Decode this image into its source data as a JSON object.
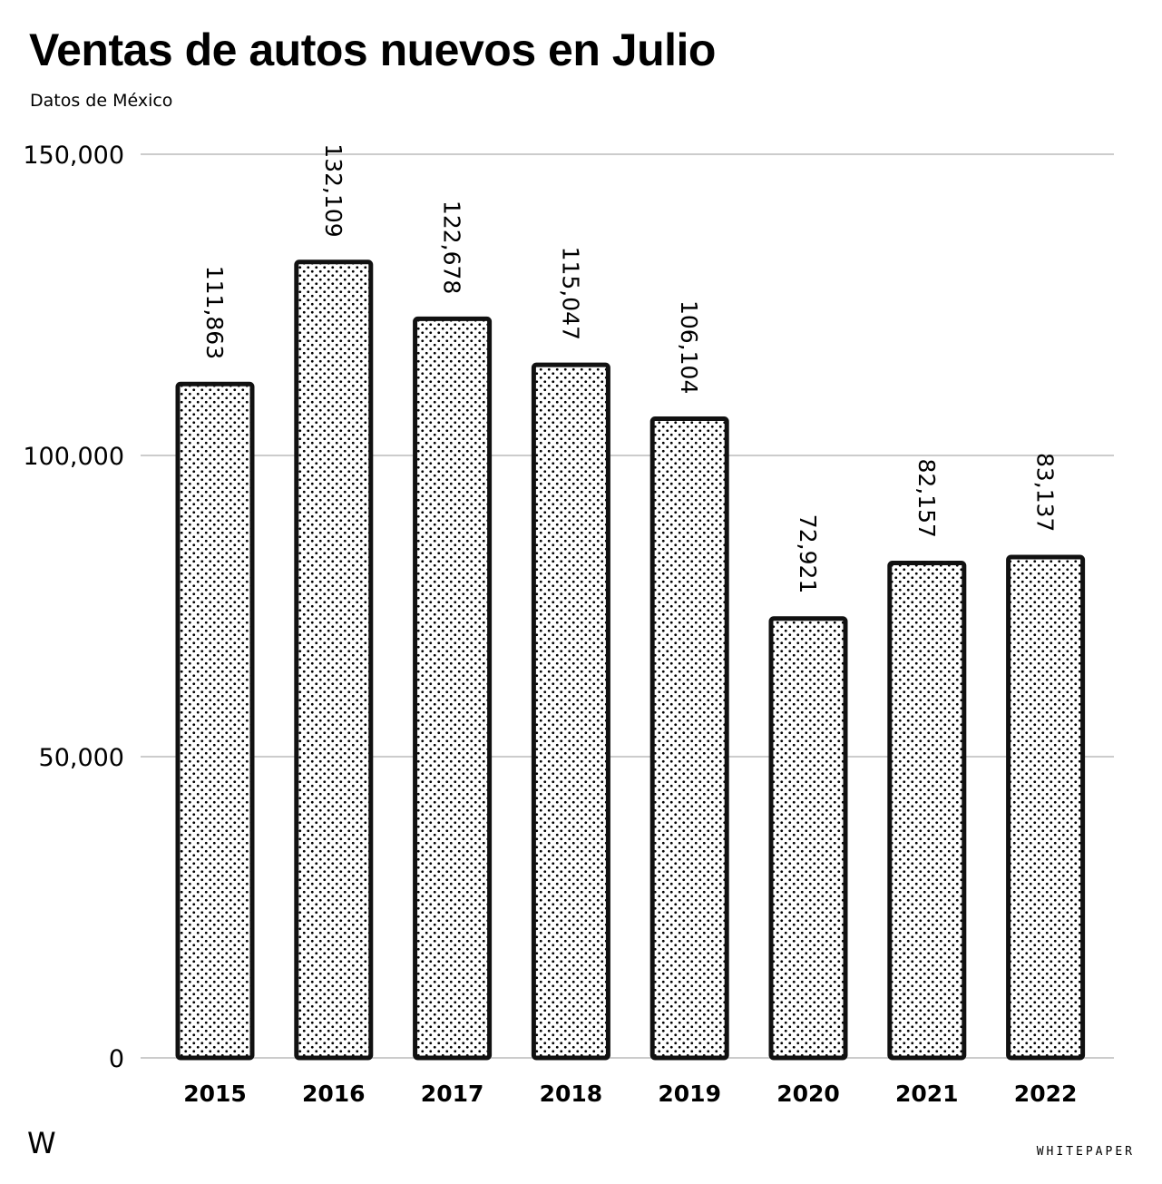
{
  "header": {
    "title": "Ventas de autos nuevos en Julio",
    "subtitle": "Datos de México"
  },
  "footer": {
    "logo": "W",
    "brand": "WHITEPAPER"
  },
  "colors": {
    "bar_fill": "#ffffff",
    "bar_dots": "#000000",
    "bar_stroke": "#111111",
    "grid": "#cccccc"
  },
  "chart_data": {
    "type": "bar",
    "categories": [
      "2015",
      "2016",
      "2017",
      "2018",
      "2019",
      "2020",
      "2021",
      "2022"
    ],
    "values": [
      111863,
      132109,
      122678,
      115047,
      106104,
      72921,
      82157,
      83137
    ],
    "value_labels": [
      "111,863",
      "132,109",
      "122,678",
      "115,047",
      "106,104",
      "72,921",
      "82,157",
      "83,137"
    ],
    "ylim": [
      0,
      150000
    ],
    "yticks": [
      0,
      50000,
      100000,
      150000
    ],
    "ytick_labels": [
      "0",
      "50,000",
      "100,000",
      "150,000"
    ],
    "grid": true,
    "xlabel": "",
    "ylabel": ""
  }
}
